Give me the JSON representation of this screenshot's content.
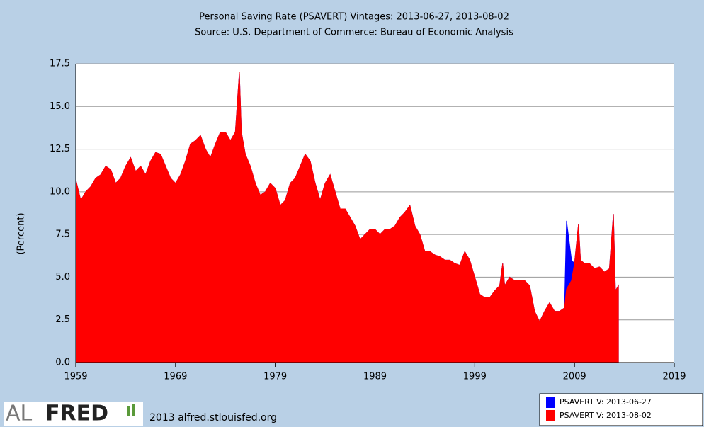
{
  "chart_data": {
    "type": "area",
    "title": "Personal Saving Rate (PSAVERT) Vintages: 2013-06-27, 2013-08-02",
    "subtitle": "Source: U.S. Department of Commerce: Bureau of Economic Analysis",
    "y_label": "(Percent)",
    "x": [
      1959.0,
      1959.5,
      1960.0,
      1960.5,
      1961.0,
      1961.5,
      1962.0,
      1962.5,
      1963.0,
      1963.5,
      1964.0,
      1964.5,
      1965.0,
      1965.5,
      1966.0,
      1966.5,
      1967.0,
      1967.5,
      1968.0,
      1968.5,
      1969.0,
      1969.5,
      1970.0,
      1970.5,
      1971.0,
      1971.5,
      1972.0,
      1972.5,
      1973.0,
      1973.5,
      1974.0,
      1974.5,
      1975.0,
      1975.4,
      1975.6,
      1976.0,
      1976.5,
      1977.0,
      1977.5,
      1978.0,
      1978.5,
      1979.0,
      1979.5,
      1980.0,
      1980.5,
      1981.0,
      1981.5,
      1982.0,
      1982.5,
      1983.0,
      1983.5,
      1984.0,
      1984.5,
      1985.0,
      1985.5,
      1986.0,
      1986.5,
      1987.0,
      1987.5,
      1988.0,
      1988.5,
      1989.0,
      1989.5,
      1990.0,
      1990.5,
      1991.0,
      1991.5,
      1992.0,
      1992.5,
      1993.0,
      1993.5,
      1994.0,
      1994.5,
      1995.0,
      1995.5,
      1996.0,
      1996.5,
      1997.0,
      1997.5,
      1998.0,
      1998.5,
      1999.0,
      1999.5,
      2000.0,
      2000.5,
      2001.0,
      2001.5,
      2001.8,
      2002.0,
      2002.5,
      2003.0,
      2003.5,
      2004.0,
      2004.5,
      2005.0,
      2005.5,
      2006.0,
      2006.5,
      2007.0,
      2007.5,
      2008.0,
      2008.2,
      2008.7,
      2009.0,
      2009.4,
      2009.6,
      2010.0,
      2010.5,
      2011.0,
      2011.5,
      2012.0,
      2012.5,
      2012.9,
      2013.1,
      2013.4
    ],
    "series": [
      {
        "name": "PSAVERT V: 2013-06-27",
        "color": "#0000ff",
        "values": [
          10.7,
          9.5,
          10.0,
          10.3,
          10.8,
          11.0,
          11.5,
          11.3,
          10.5,
          10.8,
          11.5,
          12.0,
          11.2,
          11.5,
          11.0,
          11.8,
          12.3,
          12.2,
          11.5,
          10.8,
          10.5,
          11.0,
          11.8,
          12.8,
          13.0,
          13.3,
          12.5,
          12.0,
          12.8,
          13.5,
          13.5,
          13.0,
          13.5,
          17.0,
          13.5,
          12.2,
          11.5,
          10.5,
          9.8,
          10.0,
          10.5,
          10.2,
          9.2,
          9.5,
          10.5,
          10.8,
          11.5,
          12.2,
          11.8,
          10.5,
          9.5,
          10.5,
          11.0,
          10.0,
          9.0,
          9.0,
          8.5,
          8.0,
          7.2,
          7.5,
          7.8,
          7.8,
          7.5,
          7.8,
          7.8,
          8.0,
          8.5,
          8.8,
          9.2,
          8.0,
          7.5,
          6.5,
          6.5,
          6.3,
          6.2,
          6.0,
          6.0,
          5.8,
          5.7,
          6.5,
          6.0,
          5.0,
          4.0,
          3.8,
          3.8,
          4.2,
          4.5,
          5.8,
          4.5,
          5.0,
          4.8,
          4.8,
          4.8,
          4.5,
          3.0,
          2.4,
          3.0,
          3.5,
          3.0,
          3.0,
          3.2,
          8.3,
          6.0,
          5.8,
          8.1,
          6.0,
          5.8,
          5.8,
          5.5,
          5.6,
          5.3,
          5.5,
          8.7,
          4.2,
          4.5
        ]
      },
      {
        "name": "PSAVERT V: 2013-08-02",
        "color": "#ff0000",
        "values": [
          10.7,
          9.5,
          10.0,
          10.3,
          10.8,
          11.0,
          11.5,
          11.3,
          10.5,
          10.8,
          11.5,
          12.0,
          11.2,
          11.5,
          11.0,
          11.8,
          12.3,
          12.2,
          11.5,
          10.8,
          10.5,
          11.0,
          11.8,
          12.8,
          13.0,
          13.3,
          12.5,
          12.0,
          12.8,
          13.5,
          13.5,
          13.0,
          13.5,
          17.0,
          13.5,
          12.2,
          11.5,
          10.5,
          9.8,
          10.0,
          10.5,
          10.2,
          9.2,
          9.5,
          10.5,
          10.8,
          11.5,
          12.2,
          11.8,
          10.5,
          9.5,
          10.5,
          11.0,
          10.0,
          9.0,
          9.0,
          8.5,
          8.0,
          7.2,
          7.5,
          7.8,
          7.8,
          7.5,
          7.8,
          7.8,
          8.0,
          8.5,
          8.8,
          9.2,
          8.0,
          7.5,
          6.5,
          6.5,
          6.3,
          6.2,
          6.0,
          6.0,
          5.8,
          5.7,
          6.5,
          6.0,
          5.0,
          4.0,
          3.8,
          3.8,
          4.2,
          4.5,
          5.8,
          4.5,
          5.0,
          4.8,
          4.8,
          4.8,
          4.5,
          3.0,
          2.4,
          3.0,
          3.5,
          3.0,
          3.0,
          3.2,
          4.3,
          4.8,
          5.8,
          8.1,
          6.0,
          5.8,
          5.8,
          5.5,
          5.6,
          5.3,
          5.5,
          8.7,
          4.2,
          4.5
        ]
      }
    ],
    "xlim": [
      1959,
      2019
    ],
    "xticks": [
      1959,
      1969,
      1979,
      1989,
      1999,
      2009,
      2019
    ],
    "ylim": [
      0,
      17.5
    ],
    "yticks": [
      {
        "value": 0,
        "label": "0.0"
      },
      {
        "value": 2.5,
        "label": "2.5"
      },
      {
        "value": 5,
        "label": "5.0"
      },
      {
        "value": 7.5,
        "label": "7.5"
      },
      {
        "value": 10,
        "label": "10.0"
      },
      {
        "value": 12.5,
        "label": "12.5"
      },
      {
        "value": 15,
        "label": "15.0"
      },
      {
        "value": 17.5,
        "label": "17.5"
      }
    ],
    "grid": true,
    "legend": "bottom-right",
    "logo": [
      "AL",
      "FRED"
    ],
    "footer": "2013 alfred.stlouisfed.org"
  }
}
